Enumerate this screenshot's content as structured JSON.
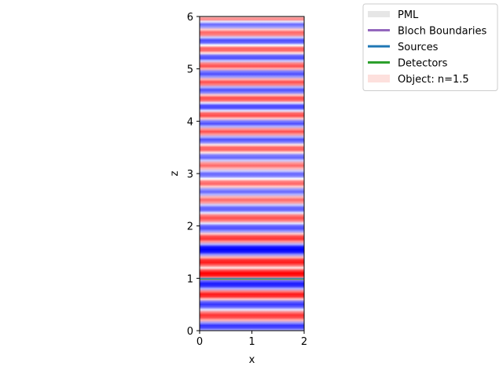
{
  "chart_data": {
    "type": "heatmap",
    "title": "",
    "xlabel": "x",
    "ylabel": "z",
    "xlim": [
      0,
      2
    ],
    "ylim": [
      0,
      6
    ],
    "xticks": [
      0,
      1,
      2
    ],
    "yticks": [
      0,
      1,
      2,
      3,
      4,
      5,
      6
    ],
    "colormap": [
      "#0000ff",
      "#ffffff",
      "#ff0000"
    ],
    "grid": false,
    "field": {
      "description": "field value vs z (uniform in x), range -1..1",
      "z": [
        0.0,
        0.05,
        0.1,
        0.15,
        0.2,
        0.25,
        0.3,
        0.35,
        0.4,
        0.45,
        0.5,
        0.55,
        0.6,
        0.65,
        0.7,
        0.75,
        0.8,
        0.85,
        0.9,
        0.95,
        1.0,
        1.05,
        1.1,
        1.15,
        1.2,
        1.25,
        1.3,
        1.35,
        1.4,
        1.45,
        1.5,
        1.55,
        1.6,
        1.65,
        1.7,
        1.75,
        1.8,
        1.85,
        1.9,
        1.95,
        2.0,
        2.05,
        2.1,
        2.15,
        2.2,
        2.25,
        2.3,
        2.35,
        2.4,
        2.45,
        2.5,
        2.55,
        2.6,
        2.65,
        2.7,
        2.75,
        2.8,
        2.85,
        2.9,
        2.95,
        3.0,
        3.05,
        3.1,
        3.15,
        3.2,
        3.25,
        3.3,
        3.35,
        3.4,
        3.45,
        3.5,
        3.55,
        3.6,
        3.65,
        3.7,
        3.75,
        3.8,
        3.85,
        3.9,
        3.95,
        4.0,
        4.05,
        4.1,
        4.15,
        4.2,
        4.25,
        4.3,
        4.35,
        4.4,
        4.45,
        4.5,
        4.55,
        4.6,
        4.65,
        4.7,
        4.75,
        4.8,
        4.85,
        4.9,
        4.95,
        5.0,
        5.05,
        5.1,
        5.15,
        5.2,
        5.25,
        5.3,
        5.35,
        5.4,
        5.45,
        5.5,
        5.55,
        5.6,
        5.65,
        5.7,
        5.75,
        5.8,
        5.85,
        5.9,
        5.95,
        6.0
      ],
      "value": [
        -0.2,
        -0.7,
        -0.8,
        -0.4,
        0.3,
        0.7,
        0.8,
        0.5,
        -0.1,
        -0.6,
        -0.8,
        -0.6,
        0.2,
        0.8,
        0.9,
        0.5,
        -0.3,
        -0.8,
        -0.9,
        -0.6,
        0.3,
        0.9,
        1.0,
        0.7,
        0.1,
        0.6,
        0.9,
        0.8,
        0.3,
        -0.4,
        -0.9,
        -1.0,
        -0.9,
        -0.3,
        0.4,
        0.8,
        0.7,
        0.2,
        -0.4,
        -0.7,
        -0.6,
        -0.1,
        0.5,
        0.7,
        0.5,
        -0.1,
        -0.6,
        -0.6,
        -0.2,
        0.4,
        0.6,
        0.3,
        -0.3,
        -0.6,
        -0.4,
        0.2,
        0.6,
        0.5,
        0.0,
        -0.5,
        -0.6,
        -0.2,
        0.3,
        0.6,
        0.4,
        -0.2,
        -0.6,
        -0.5,
        0.1,
        0.6,
        0.6,
        0.1,
        -0.5,
        -0.7,
        -0.3,
        0.4,
        0.7,
        0.4,
        -0.3,
        -0.7,
        -0.5,
        0.2,
        0.7,
        0.6,
        -0.1,
        -0.7,
        -0.7,
        -0.1,
        0.6,
        0.7,
        0.2,
        -0.5,
        -0.7,
        -0.3,
        0.5,
        0.7,
        0.3,
        -0.4,
        -0.7,
        -0.5,
        0.3,
        0.7,
        0.5,
        -0.2,
        -0.7,
        -0.6,
        0.1,
        0.6,
        0.6,
        0.0,
        -0.6,
        -0.7,
        -0.2,
        0.5,
        0.6,
        0.2,
        -0.4,
        -0.6,
        -0.1,
        0.5,
        0.2
      ]
    },
    "sources": [
      {
        "z": 1.0,
        "x": [
          0,
          2
        ]
      }
    ],
    "detectors": [
      {
        "z": 0.98,
        "x": [
          0,
          2
        ]
      }
    ],
    "legend": {
      "placement": "upper-right",
      "entries": [
        {
          "label": "PML",
          "color": "#e6e6e6",
          "style": "thick-line"
        },
        {
          "label": "Bloch Boundaries",
          "color": "#9467bd",
          "style": "line"
        },
        {
          "label": "Sources",
          "color": "#1f77b4",
          "style": "line"
        },
        {
          "label": "Detectors",
          "color": "#2ca02c",
          "style": "line"
        },
        {
          "label": "Object: n=1.5",
          "color": "#fde0dd",
          "style": "patch"
        }
      ]
    }
  }
}
